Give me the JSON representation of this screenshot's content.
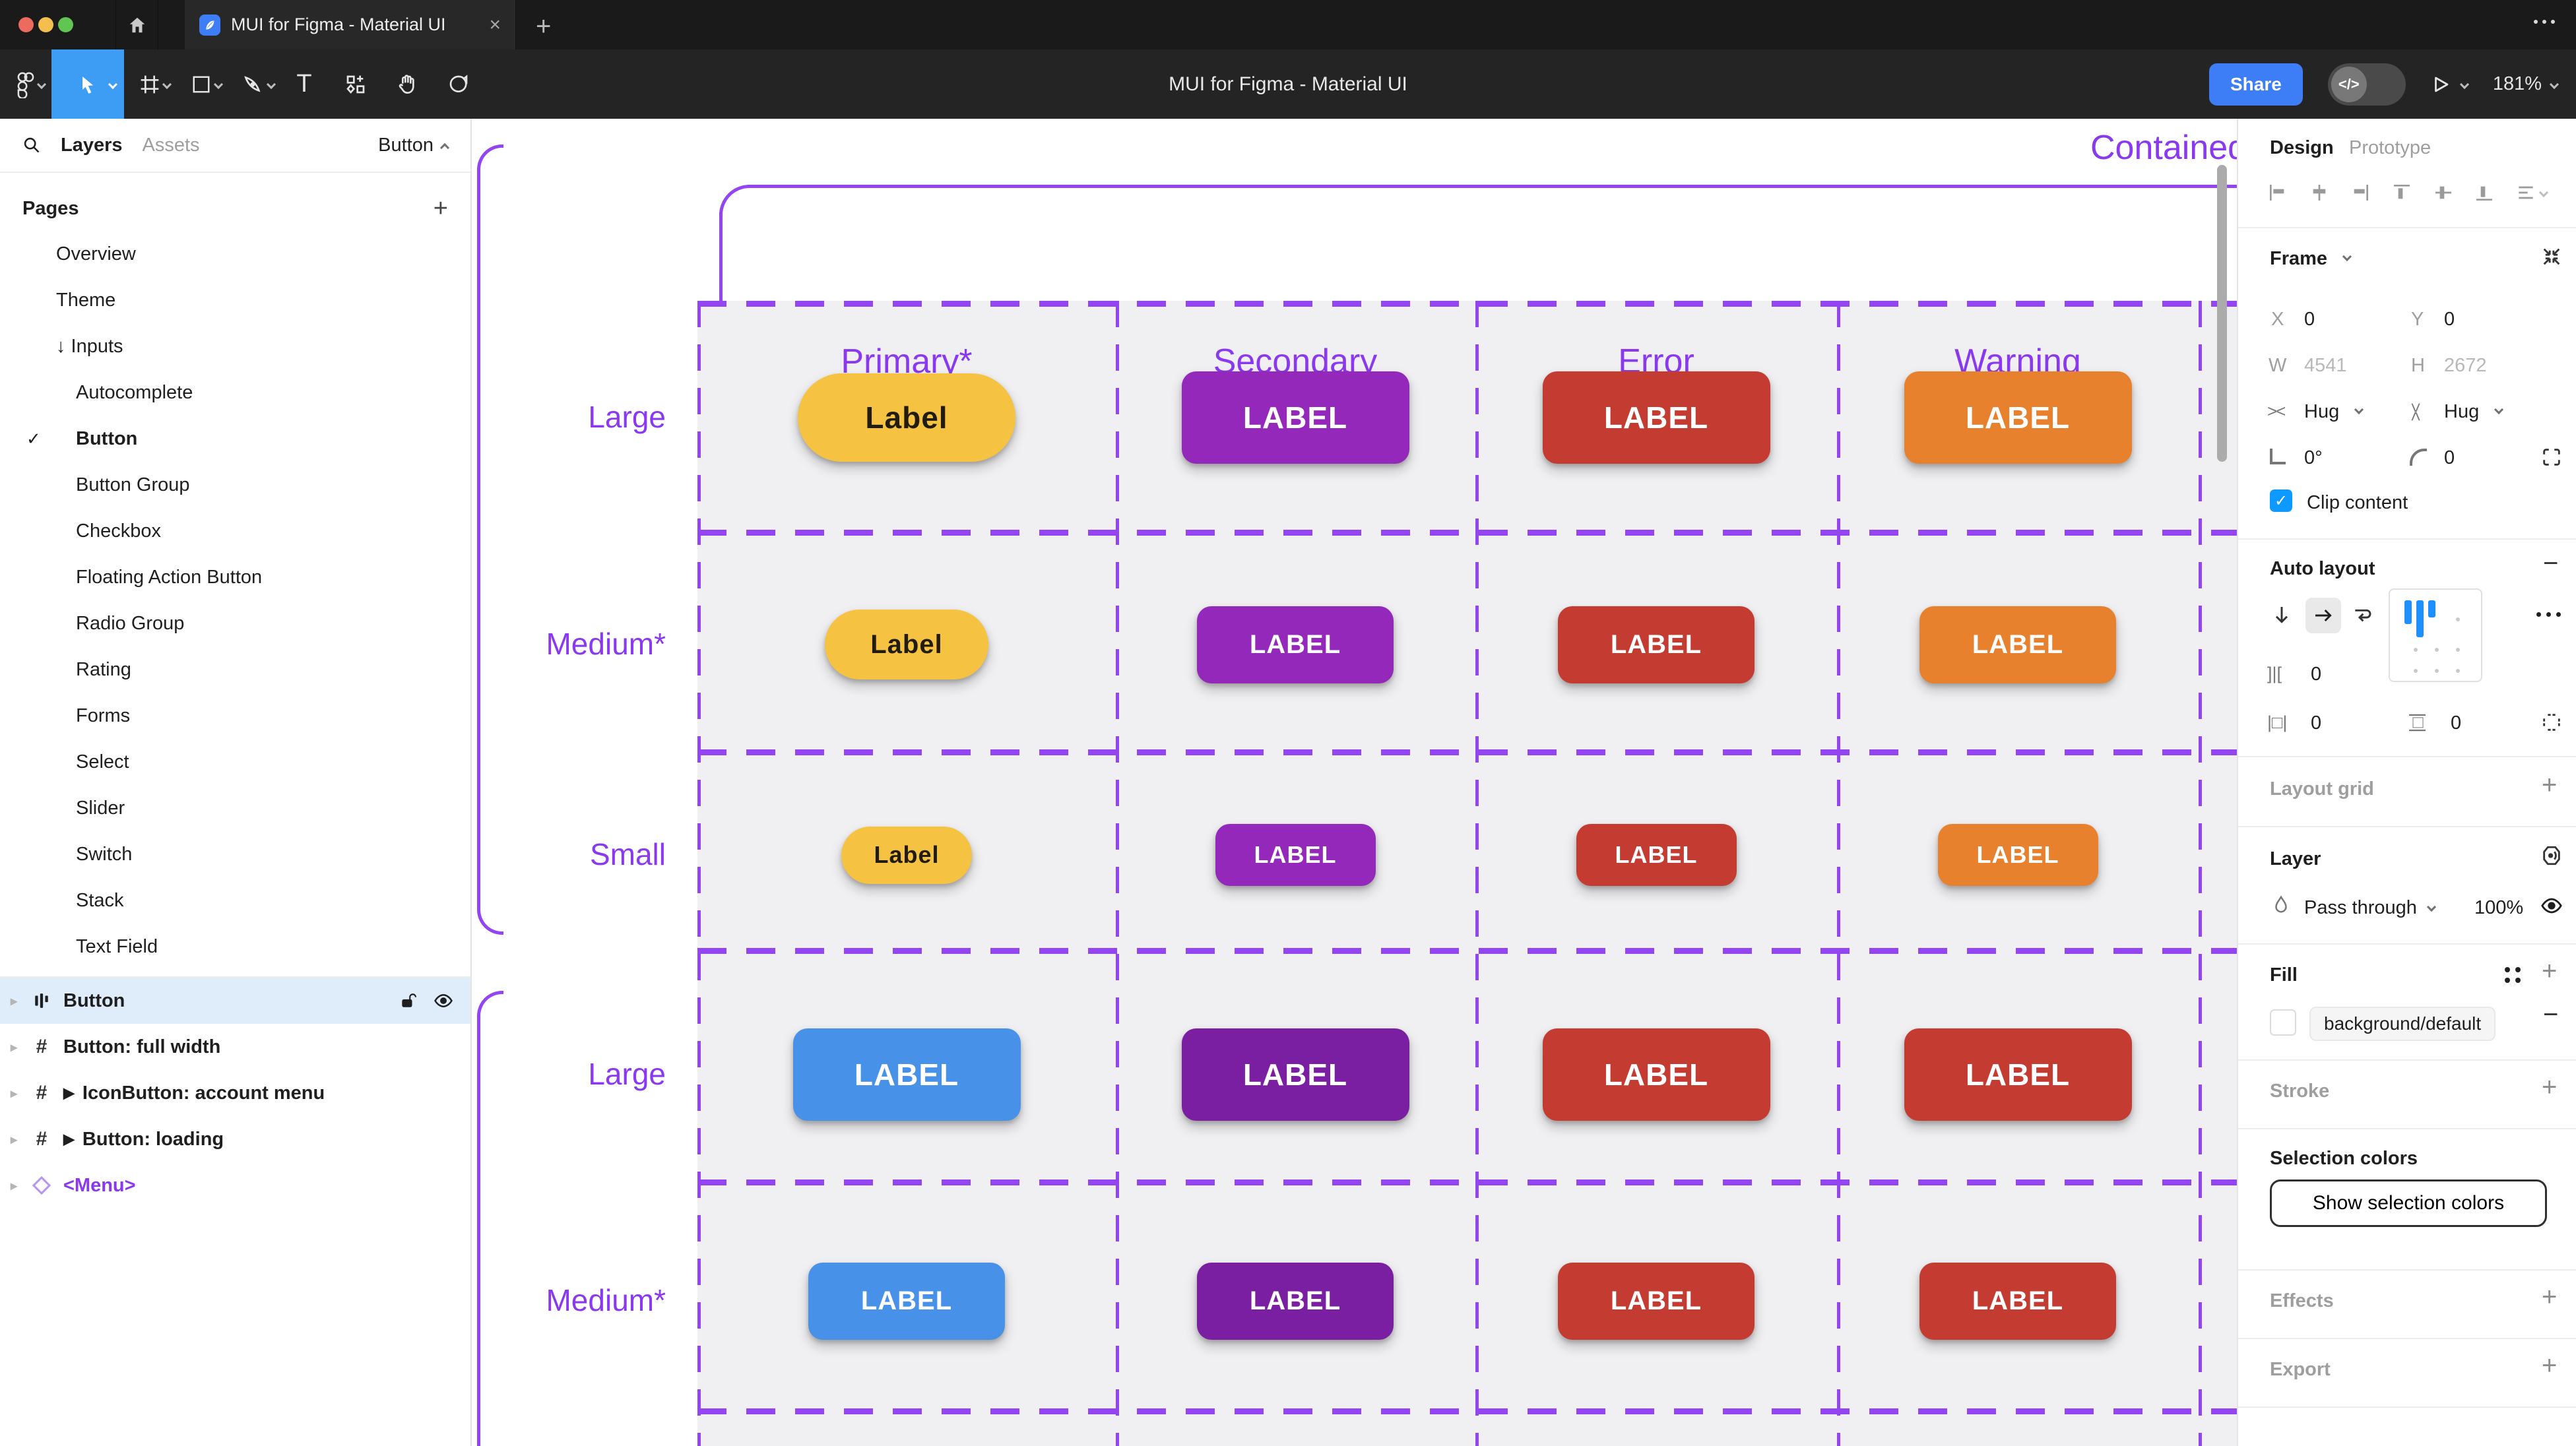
{
  "browser": {
    "tab_title": "MUI for Figma - Material UI",
    "close_glyph": "×",
    "new_tab_glyph": "+"
  },
  "toolbar": {
    "document_title": "MUI for Figma - Material UI",
    "share_label": "Share",
    "dev_mode_glyph": "</>",
    "zoom_value": "181%",
    "tools": [
      "figma-menu",
      "move",
      "frame",
      "shape",
      "pen",
      "text",
      "actions",
      "hand",
      "comment"
    ]
  },
  "sidebar": {
    "tab_layers": "Layers",
    "tab_assets": "Assets",
    "component_selector": "Button",
    "pages_header": "Pages",
    "pages": [
      {
        "label": "Overview",
        "indent": 1
      },
      {
        "label": "Theme",
        "indent": 1
      },
      {
        "label": "Inputs",
        "indent": 1,
        "prefix": "↓"
      },
      {
        "label": "Autocomplete",
        "indent": 2
      },
      {
        "label": "Button",
        "indent": 2,
        "active": true,
        "check": "✓"
      },
      {
        "label": "Button Group",
        "indent": 2
      },
      {
        "label": "Checkbox",
        "indent": 2
      },
      {
        "label": "Floating Action Button",
        "indent": 2
      },
      {
        "label": "Radio Group",
        "indent": 2
      },
      {
        "label": "Rating",
        "indent": 2
      },
      {
        "label": "Forms",
        "indent": 2
      },
      {
        "label": "Select",
        "indent": 2
      },
      {
        "label": "Slider",
        "indent": 2
      },
      {
        "label": "Switch",
        "indent": 2
      },
      {
        "label": "Stack",
        "indent": 2
      },
      {
        "label": "Text Field",
        "indent": 2
      }
    ],
    "layers": [
      {
        "label": "Button",
        "icon": "auto-layout",
        "selected": true
      },
      {
        "label": "Button: full width",
        "icon": "frame"
      },
      {
        "label": "IconButton: account menu",
        "icon": "frame",
        "play": true
      },
      {
        "label": "Button: loading",
        "icon": "frame",
        "play": true
      },
      {
        "label": "<Menu>",
        "icon": "component",
        "purple": true
      }
    ]
  },
  "canvas": {
    "accent_color": "#8A39EF",
    "frame_title": "Contained",
    "columns": [
      "Primary*",
      "Secondary",
      "Error",
      "Warning"
    ],
    "row_groups": [
      {
        "rows": [
          {
            "label": "Large",
            "size": "large",
            "buttons": [
              {
                "text": "Label",
                "bg": "#F5C242",
                "fg": "#221C0F",
                "pill": true
              },
              {
                "text": "LABEL",
                "bg": "#9328BB",
                "fg": "#FFFFFF"
              },
              {
                "text": "LABEL",
                "bg": "#C43B32",
                "fg": "#FFFFFF"
              },
              {
                "text": "LABEL",
                "bg": "#E8812D",
                "fg": "#FFFFFF"
              }
            ]
          },
          {
            "label": "Medium*",
            "size": "medium",
            "buttons": [
              {
                "text": "Label",
                "bg": "#F5C242",
                "fg": "#221C0F",
                "pill": true
              },
              {
                "text": "LABEL",
                "bg": "#9328BB",
                "fg": "#FFFFFF"
              },
              {
                "text": "LABEL",
                "bg": "#C43B32",
                "fg": "#FFFFFF"
              },
              {
                "text": "LABEL",
                "bg": "#E8812D",
                "fg": "#FFFFFF"
              }
            ]
          },
          {
            "label": "Small",
            "size": "small",
            "buttons": [
              {
                "text": "Label",
                "bg": "#F5C242",
                "fg": "#221C0F",
                "pill": true
              },
              {
                "text": "LABEL",
                "bg": "#9328BB",
                "fg": "#FFFFFF"
              },
              {
                "text": "LABEL",
                "bg": "#C43B32",
                "fg": "#FFFFFF"
              },
              {
                "text": "LABEL",
                "bg": "#E8812D",
                "fg": "#FFFFFF"
              }
            ]
          }
        ]
      },
      {
        "rows": [
          {
            "label": "Large",
            "size": "large",
            "buttons": [
              {
                "text": "LABEL",
                "bg": "#4792E8",
                "fg": "#FFFFFF"
              },
              {
                "text": "LABEL",
                "bg": "#7B1FA2",
                "fg": "#FFFFFF"
              },
              {
                "text": "LABEL",
                "bg": "#C43B32",
                "fg": "#FFFFFF"
              },
              {
                "text": "LABEL",
                "bg": "#C43B32",
                "fg": "#FFFFFF"
              }
            ]
          },
          {
            "label": "Medium*",
            "size": "medium",
            "buttons": [
              {
                "text": "LABEL",
                "bg": "#4792E8",
                "fg": "#FFFFFF"
              },
              {
                "text": "LABEL",
                "bg": "#7B1FA2",
                "fg": "#FFFFFF"
              },
              {
                "text": "LABEL",
                "bg": "#C43B32",
                "fg": "#FFFFFF"
              },
              {
                "text": "LABEL",
                "bg": "#C43B32",
                "fg": "#FFFFFF"
              }
            ]
          }
        ]
      }
    ]
  },
  "inspector": {
    "design_tab": "Design",
    "prototype_tab": "Prototype",
    "frame": {
      "title": "Frame",
      "x_label": "X",
      "x_value": "0",
      "y_label": "Y",
      "y_value": "0",
      "w_label": "W",
      "w_value": "4541",
      "h_label": "H",
      "h_value": "2672",
      "hug_h_value": "Hug",
      "hug_v_value": "Hug",
      "rotation_value": "0°",
      "corner_radius_value": "0",
      "clip_content_label": "Clip content"
    },
    "auto_layout": {
      "title": "Auto layout",
      "gap_value": "0",
      "padding_h_value": "0",
      "padding_v_value": "0"
    },
    "layout_grid": {
      "title": "Layout grid"
    },
    "layer": {
      "title": "Layer",
      "blend_mode": "Pass through",
      "opacity_value": "100%"
    },
    "fill": {
      "title": "Fill",
      "style_token": "background/default"
    },
    "stroke": {
      "title": "Stroke"
    },
    "selection_colors": {
      "title": "Selection colors",
      "show_button_label": "Show selection colors"
    },
    "effects": {
      "title": "Effects"
    },
    "export": {
      "title": "Export"
    }
  }
}
